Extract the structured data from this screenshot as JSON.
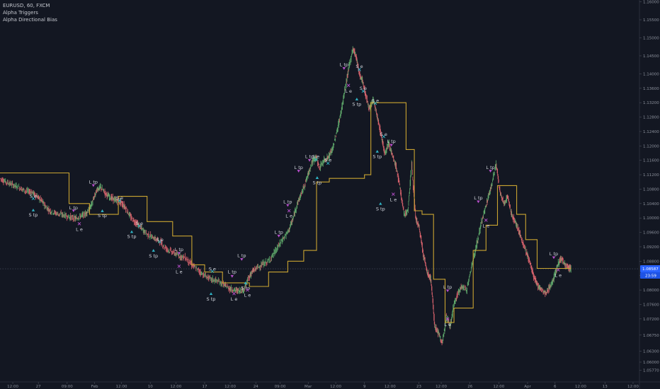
{
  "header": {
    "symbol_line": "EURUSD, 60, FXCM",
    "indicators": [
      "Alpha Triggers",
      "Alpha Directional Bias"
    ]
  },
  "colors": {
    "background": "#131722",
    "up": "#5fa86b",
    "down": "#d9636d",
    "bias": "#c9a431",
    "long_marker": "#2fb3c4",
    "short_marker": "#b84fcc",
    "last_price_bg": "#2962ff"
  },
  "chart_data": {
    "type": "line",
    "ylim": [
      1.0545,
      1.1605
    ],
    "yticks": [
      1.16,
      1.155,
      1.15,
      1.145,
      1.14,
      1.136,
      1.132,
      1.128,
      1.124,
      1.12,
      1.116,
      1.112,
      1.108,
      1.104,
      1.1,
      1.096,
      1.092,
      1.088,
      1.084,
      1.08,
      1.076,
      1.072,
      1.0675,
      1.063,
      1.06,
      1.0577
    ],
    "ytick_labels": [
      "1.16000",
      "1.15500",
      "1.15000",
      "1.14500",
      "1.14000",
      "1.13600",
      "1.13200",
      "1.12800",
      "1.12400",
      "1.12000",
      "1.11600",
      "1.11200",
      "1.10800",
      "1.10400",
      "1.10000",
      "1.09600",
      "1.09200",
      "1.08800",
      "1.08400",
      "1.08000",
      "1.07600",
      "1.07200",
      "1.06750",
      "1.06300",
      "1.06000",
      "1.05770"
    ],
    "xtick_labels": [
      {
        "x": 0.02,
        "label": "12:00"
      },
      {
        "x": 0.06,
        "label": "27"
      },
      {
        "x": 0.105,
        "label": "09:00"
      },
      {
        "x": 0.148,
        "label": "Feb"
      },
      {
        "x": 0.19,
        "label": "12:00"
      },
      {
        "x": 0.235,
        "label": "10"
      },
      {
        "x": 0.275,
        "label": "12:00"
      },
      {
        "x": 0.32,
        "label": "17"
      },
      {
        "x": 0.36,
        "label": "12:00"
      },
      {
        "x": 0.4,
        "label": "24"
      },
      {
        "x": 0.438,
        "label": "09:00"
      },
      {
        "x": 0.482,
        "label": "Mar"
      },
      {
        "x": 0.525,
        "label": "12:00"
      },
      {
        "x": 0.57,
        "label": "9"
      },
      {
        "x": 0.61,
        "label": "12:00"
      },
      {
        "x": 0.655,
        "label": "23"
      },
      {
        "x": 0.69,
        "label": "12:00"
      },
      {
        "x": 0.735,
        "label": "26"
      },
      {
        "x": 0.78,
        "label": "12:00"
      },
      {
        "x": 0.825,
        "label": "Apr"
      },
      {
        "x": 0.868,
        "label": "6"
      },
      {
        "x": 0.908,
        "label": "12:00"
      },
      {
        "x": 0.946,
        "label": "13"
      },
      {
        "x": 0.99,
        "label": "12:00"
      }
    ],
    "price_path": [
      [
        0.0,
        1.111
      ],
      [
        0.01,
        1.11
      ],
      [
        0.02,
        1.1092
      ],
      [
        0.03,
        1.1085
      ],
      [
        0.04,
        1.1075
      ],
      [
        0.05,
        1.1072
      ],
      [
        0.058,
        1.106
      ],
      [
        0.065,
        1.1048
      ],
      [
        0.072,
        1.103
      ],
      [
        0.08,
        1.1018
      ],
      [
        0.09,
        1.1012
      ],
      [
        0.1,
        1.1008
      ],
      [
        0.11,
        1.1002
      ],
      [
        0.118,
        1.0998
      ],
      [
        0.126,
        1.1005
      ],
      [
        0.134,
        1.1012
      ],
      [
        0.14,
        1.1025
      ],
      [
        0.146,
        1.105
      ],
      [
        0.152,
        1.108
      ],
      [
        0.158,
        1.1085
      ],
      [
        0.165,
        1.1068
      ],
      [
        0.172,
        1.1058
      ],
      [
        0.18,
        1.105
      ],
      [
        0.188,
        1.1045
      ],
      [
        0.196,
        1.103
      ],
      [
        0.205,
        1.1
      ],
      [
        0.214,
        1.0985
      ],
      [
        0.222,
        1.097
      ],
      [
        0.23,
        1.0955
      ],
      [
        0.24,
        1.0945
      ],
      [
        0.25,
        1.0935
      ],
      [
        0.26,
        1.0915
      ],
      [
        0.27,
        1.0905
      ],
      [
        0.28,
        1.0895
      ],
      [
        0.29,
        1.089
      ],
      [
        0.3,
        1.087
      ],
      [
        0.31,
        1.0855
      ],
      [
        0.32,
        1.084
      ],
      [
        0.33,
        1.083
      ],
      [
        0.34,
        1.0825
      ],
      [
        0.35,
        1.0815
      ],
      [
        0.358,
        1.0805
      ],
      [
        0.366,
        1.08
      ],
      [
        0.374,
        1.0798
      ],
      [
        0.382,
        1.0802
      ],
      [
        0.388,
        1.083
      ],
      [
        0.394,
        1.085
      ],
      [
        0.4,
        1.086
      ],
      [
        0.41,
        1.087
      ],
      [
        0.42,
        1.088
      ],
      [
        0.43,
        1.0905
      ],
      [
        0.44,
        1.0935
      ],
      [
        0.45,
        1.096
      ],
      [
        0.458,
        1.0995
      ],
      [
        0.465,
        1.104
      ],
      [
        0.472,
        1.107
      ],
      [
        0.48,
        1.111
      ],
      [
        0.487,
        1.115
      ],
      [
        0.494,
        1.117
      ],
      [
        0.5,
        1.114
      ],
      [
        0.507,
        1.116
      ],
      [
        0.514,
        1.117
      ],
      [
        0.52,
        1.119
      ],
      [
        0.527,
        1.124
      ],
      [
        0.533,
        1.129
      ],
      [
        0.54,
        1.136
      ],
      [
        0.546,
        1.142
      ],
      [
        0.552,
        1.147
      ],
      [
        0.557,
        1.145
      ],
      [
        0.562,
        1.14
      ],
      [
        0.567,
        1.138
      ],
      [
        0.572,
        1.134
      ],
      [
        0.578,
        1.13
      ],
      [
        0.584,
        1.133
      ],
      [
        0.59,
        1.128
      ],
      [
        0.596,
        1.123
      ],
      [
        0.602,
        1.118
      ],
      [
        0.608,
        1.121
      ],
      [
        0.614,
        1.117
      ],
      [
        0.62,
        1.114
      ],
      [
        0.626,
        1.108
      ],
      [
        0.632,
        1.101
      ],
      [
        0.638,
        1.102
      ],
      [
        0.644,
        1.115
      ],
      [
        0.65,
        1.1
      ],
      [
        0.656,
        1.097
      ],
      [
        0.662,
        1.09
      ],
      [
        0.668,
        1.085
      ],
      [
        0.674,
        1.083
      ],
      [
        0.68,
        1.07
      ],
      [
        0.686,
        1.068
      ],
      [
        0.692,
        1.065
      ],
      [
        0.698,
        1.073
      ],
      [
        0.704,
        1.07
      ],
      [
        0.71,
        1.076
      ],
      [
        0.716,
        1.079
      ],
      [
        0.722,
        1.081
      ],
      [
        0.73,
        1.08
      ],
      [
        0.738,
        1.087
      ],
      [
        0.745,
        1.092
      ],
      [
        0.752,
        1.098
      ],
      [
        0.758,
        1.102
      ],
      [
        0.764,
        1.106
      ],
      [
        0.77,
        1.11
      ],
      [
        0.776,
        1.115
      ],
      [
        0.782,
        1.107
      ],
      [
        0.788,
        1.104
      ],
      [
        0.794,
        1.106
      ],
      [
        0.8,
        1.101
      ],
      [
        0.806,
        1.099
      ],
      [
        0.812,
        1.096
      ],
      [
        0.818,
        1.093
      ],
      [
        0.824,
        1.09
      ],
      [
        0.83,
        1.087
      ],
      [
        0.836,
        1.083
      ],
      [
        0.842,
        1.081
      ],
      [
        0.848,
        1.08
      ],
      [
        0.854,
        1.079
      ],
      [
        0.86,
        1.081
      ],
      [
        0.866,
        1.083
      ],
      [
        0.872,
        1.087
      ],
      [
        0.878,
        1.089
      ],
      [
        0.884,
        1.087
      ],
      [
        0.89,
        1.086
      ],
      [
        0.893,
        1.086
      ]
    ],
    "bias_line": [
      [
        0.0,
        1.1125
      ],
      [
        0.108,
        1.1125
      ],
      [
        0.108,
        1.104
      ],
      [
        0.14,
        1.104
      ],
      [
        0.14,
        1.101
      ],
      [
        0.185,
        1.101
      ],
      [
        0.185,
        1.106
      ],
      [
        0.23,
        1.106
      ],
      [
        0.23,
        1.099
      ],
      [
        0.27,
        1.099
      ],
      [
        0.27,
        1.095
      ],
      [
        0.3,
        1.095
      ],
      [
        0.3,
        1.087
      ],
      [
        0.32,
        1.087
      ],
      [
        0.32,
        1.085
      ],
      [
        0.348,
        1.085
      ],
      [
        0.348,
        1.082
      ],
      [
        0.39,
        1.082
      ],
      [
        0.39,
        1.081
      ],
      [
        0.42,
        1.081
      ],
      [
        0.42,
        1.085
      ],
      [
        0.45,
        1.085
      ],
      [
        0.45,
        1.088
      ],
      [
        0.475,
        1.088
      ],
      [
        0.475,
        1.091
      ],
      [
        0.495,
        1.091
      ],
      [
        0.495,
        1.11
      ],
      [
        0.515,
        1.11
      ],
      [
        0.515,
        1.111
      ],
      [
        0.57,
        1.111
      ],
      [
        0.57,
        1.112
      ],
      [
        0.58,
        1.112
      ],
      [
        0.58,
        1.132
      ],
      [
        0.635,
        1.132
      ],
      [
        0.635,
        1.119
      ],
      [
        0.648,
        1.119
      ],
      [
        0.648,
        1.102
      ],
      [
        0.66,
        1.102
      ],
      [
        0.66,
        1.101
      ],
      [
        0.678,
        1.101
      ],
      [
        0.678,
        1.083
      ],
      [
        0.696,
        1.083
      ],
      [
        0.696,
        1.071
      ],
      [
        0.71,
        1.071
      ],
      [
        0.71,
        1.075
      ],
      [
        0.74,
        1.075
      ],
      [
        0.74,
        1.091
      ],
      [
        0.76,
        1.091
      ],
      [
        0.76,
        1.098
      ],
      [
        0.778,
        1.098
      ],
      [
        0.778,
        1.109
      ],
      [
        0.808,
        1.109
      ],
      [
        0.808,
        1.101
      ],
      [
        0.822,
        1.101
      ],
      [
        0.822,
        1.094
      ],
      [
        0.84,
        1.094
      ],
      [
        0.84,
        1.086
      ],
      [
        0.872,
        1.086
      ],
      [
        0.872,
        1.086
      ],
      [
        0.893,
        1.086
      ]
    ],
    "annotations": [
      {
        "text": "S e",
        "x": 0.052,
        "y": 1.106,
        "marker": "short-x",
        "my": 1.1054
      },
      {
        "text": "S tp",
        "x": 0.052,
        "y": 1.1008,
        "marker": "long-up",
        "my": 1.1022
      },
      {
        "text": "L tp",
        "x": 0.115,
        "y": 1.1028,
        "marker": "short-down",
        "my": 1.102
      },
      {
        "text": "L e",
        "x": 0.124,
        "y": 1.0968,
        "marker": "long-x",
        "my": 1.0984
      },
      {
        "text": "L tp",
        "x": 0.146,
        "y": 1.11,
        "marker": "short-down",
        "my": 1.109
      },
      {
        "text": "S e",
        "x": 0.187,
        "y": 1.1055,
        "marker": "short-x",
        "my": 1.1048
      },
      {
        "text": "S tp",
        "x": 0.16,
        "y": 1.1006,
        "marker": "long-up",
        "my": 1.102
      },
      {
        "text": "S e",
        "x": 0.218,
        "y": 1.0985,
        "marker": "short-x",
        "my": 1.0978
      },
      {
        "text": "S tp",
        "x": 0.206,
        "y": 1.0948,
        "marker": "long-up",
        "my": 1.0962
      },
      {
        "text": "S e",
        "x": 0.25,
        "y": 1.094,
        "marker": "short-x",
        "my": 1.0934
      },
      {
        "text": "S tp",
        "x": 0.24,
        "y": 1.0894,
        "marker": "long-up",
        "my": 1.091
      },
      {
        "text": "L tp",
        "x": 0.28,
        "y": 1.0912,
        "marker": "short-down",
        "my": 1.0902
      },
      {
        "text": "L e",
        "x": 0.28,
        "y": 1.085,
        "marker": "long-x",
        "my": 1.0866
      },
      {
        "text": "S e",
        "x": 0.332,
        "y": 1.0858,
        "marker": "short-x",
        "my": 1.0852
      },
      {
        "text": "S tp",
        "x": 0.33,
        "y": 1.0775,
        "marker": "long-up",
        "my": 1.079
      },
      {
        "text": "L tp",
        "x": 0.363,
        "y": 1.085,
        "marker": "short-down",
        "my": 1.0838
      },
      {
        "text": "L e",
        "x": 0.366,
        "y": 1.0775,
        "marker": "long-x",
        "my": 1.079
      },
      {
        "text": "L tp",
        "x": 0.378,
        "y": 1.0895,
        "marker": "short-down",
        "my": 1.0885
      },
      {
        "text": "S tp",
        "x": 0.384,
        "y": 1.0805,
        "marker": "long-up",
        "my": 1.082
      },
      {
        "text": "L e",
        "x": 0.387,
        "y": 1.0785,
        "marker": "long-x",
        "my": 1.08
      },
      {
        "text": "L tp",
        "x": 0.436,
        "y": 1.096,
        "marker": "short-down",
        "my": 1.095
      },
      {
        "text": "L tp",
        "x": 0.45,
        "y": 1.1045,
        "marker": "short-down",
        "my": 1.1035
      },
      {
        "text": "L e",
        "x": 0.452,
        "y": 1.1005,
        "marker": "long-x",
        "my": 1.102
      },
      {
        "text": "L tp",
        "x": 0.467,
        "y": 1.114,
        "marker": "short-down",
        "my": 1.113
      },
      {
        "text": "L tp",
        "x": 0.484,
        "y": 1.117,
        "marker": "short-down",
        "my": 1.116
      },
      {
        "text": "S e",
        "x": 0.494,
        "y": 1.117,
        "marker": "short-x",
        "my": 1.1162
      },
      {
        "text": "S tp",
        "x": 0.496,
        "y": 1.1098,
        "marker": "long-up",
        "my": 1.1112
      },
      {
        "text": "S e",
        "x": 0.513,
        "y": 1.116,
        "marker": "short-x",
        "my": 1.1152
      },
      {
        "text": "L tp",
        "x": 0.538,
        "y": 1.1425,
        "marker": "short-down",
        "my": 1.1415
      },
      {
        "text": "S e",
        "x": 0.562,
        "y": 1.142,
        "marker": "short-x",
        "my": 1.1412
      },
      {
        "text": "L e",
        "x": 0.545,
        "y": 1.1352,
        "marker": "long-x",
        "my": 1.1368
      },
      {
        "text": "S e",
        "x": 0.568,
        "y": 1.136,
        "marker": "short-x",
        "my": 1.1352
      },
      {
        "text": "S tp",
        "x": 0.558,
        "y": 1.1315,
        "marker": "long-up",
        "my": 1.133
      },
      {
        "text": "S e",
        "x": 0.587,
        "y": 1.1325,
        "marker": "short-x",
        "my": 1.1318
      },
      {
        "text": "S e",
        "x": 0.6,
        "y": 1.1232,
        "marker": "short-x",
        "my": 1.1226
      },
      {
        "text": "L tp",
        "x": 0.612,
        "y": 1.1212,
        "marker": "short-down",
        "my": 1.1202
      },
      {
        "text": "S tp",
        "x": 0.59,
        "y": 1.117,
        "marker": "long-up",
        "my": 1.1185
      },
      {
        "text": "L e",
        "x": 0.615,
        "y": 1.105,
        "marker": "long-x",
        "my": 1.1066
      },
      {
        "text": "S tp",
        "x": 0.595,
        "y": 1.1025,
        "marker": "long-up",
        "my": 1.104
      },
      {
        "text": "L tp",
        "x": 0.7,
        "y": 1.0808,
        "marker": "short-down",
        "my": 1.0798
      },
      {
        "text": "L e",
        "x": 0.7,
        "y": 1.0704,
        "marker": "long-x",
        "my": 1.072
      },
      {
        "text": "L tp",
        "x": 0.748,
        "y": 1.1055,
        "marker": "short-down",
        "my": 1.1045
      },
      {
        "text": "L tp",
        "x": 0.767,
        "y": 1.114,
        "marker": "short-down",
        "my": 1.113
      },
      {
        "text": "L e",
        "x": 0.76,
        "y": 1.0978,
        "marker": "long-x",
        "my": 1.0994
      },
      {
        "text": "L tp",
        "x": 0.866,
        "y": 1.09,
        "marker": "short-down",
        "my": 1.089
      },
      {
        "text": "L e",
        "x": 0.873,
        "y": 1.084,
        "marker": "long-x",
        "my": 1.0856
      }
    ],
    "last_price": {
      "value": "1.08587",
      "countdown": "23:59",
      "y": 1.0859
    }
  }
}
